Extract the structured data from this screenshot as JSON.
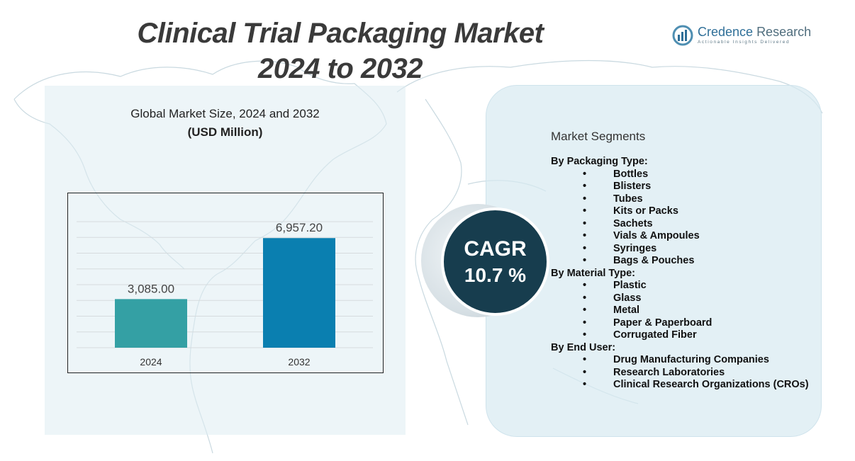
{
  "title": {
    "line1": "Clinical Trial Packaging Market",
    "line2": "2024 to 2032"
  },
  "logo": {
    "name_part1": "Credence",
    "name_part2": "Research",
    "tagline": "Actionable Insights Delivered"
  },
  "chart_heading": {
    "line1": "Global Market Size, 2024 and 2032",
    "line2": "(USD Million)"
  },
  "chart_data": {
    "type": "bar",
    "categories": [
      "2024",
      "2032"
    ],
    "values": [
      3085.0,
      6957.2
    ],
    "value_labels": [
      "3,085.00",
      "6,957.20"
    ],
    "title": "Global Market Size, 2024 and 2032",
    "ylabel": "(USD Million)",
    "ylim": [
      0,
      8000
    ],
    "grid": true,
    "colors": [
      "#34a0a4",
      "#0a7fb0"
    ]
  },
  "cagr": {
    "label": "CAGR",
    "value": "10.7 %"
  },
  "segments": {
    "title": "Market Segments",
    "groups": [
      {
        "title": "By Packaging Type:",
        "items": [
          "Bottles",
          "Blisters",
          "Tubes",
          "Kits or Packs",
          "Sachets",
          "Vials & Ampoules",
          "Syringes",
          "Bags & Pouches"
        ]
      },
      {
        "title": "By Material Type:",
        "items": [
          "Plastic",
          "Glass",
          "Metal",
          "Paper & Paperboard",
          "Corrugated Fiber"
        ]
      },
      {
        "title": "By End User:",
        "items": [
          "Drug Manufacturing Companies",
          "Research Laboratories",
          "Clinical Research Organizations (CROs)"
        ]
      }
    ]
  },
  "colors": {
    "cagr_circle": "#173d4e",
    "panel_bg": "#dcebf2",
    "title_text": "#3a3a3a"
  }
}
